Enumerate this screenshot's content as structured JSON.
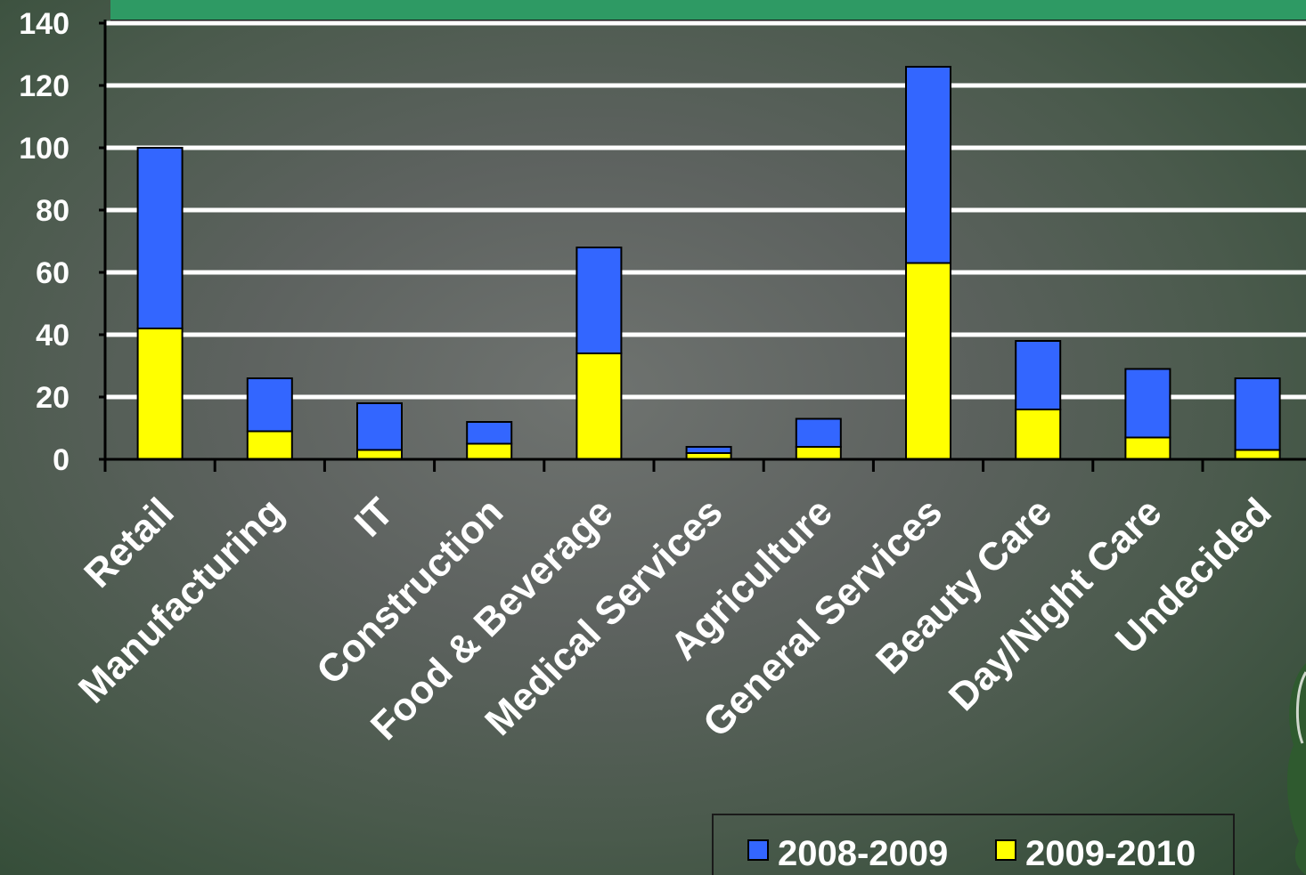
{
  "chart_data": {
    "type": "bar",
    "stacked": true,
    "categories": [
      "Retail",
      "Manufacturing",
      "IT",
      "Construction",
      "Food & Beverage",
      "Medical Services",
      "Agriculture",
      "General Services",
      "Beauty Care",
      "Day/Night Care",
      "Undecided"
    ],
    "series": [
      {
        "name": "2009-2010",
        "color": "#ffff00",
        "values": [
          42,
          9,
          3,
          5,
          34,
          2,
          4,
          63,
          16,
          7,
          3
        ]
      },
      {
        "name": "2008-2009",
        "color": "#3366ff",
        "values": [
          58,
          17,
          15,
          7,
          34,
          2,
          9,
          63,
          22,
          22,
          23
        ]
      }
    ],
    "legend_order": [
      "2008-2009",
      "2009-2010"
    ],
    "y_ticks": [
      "0",
      "20",
      "40",
      "60",
      "80",
      "100",
      "120",
      "140"
    ],
    "ylim": [
      0,
      140
    ],
    "grid": true,
    "legend_position": "bottom-right",
    "colors": {
      "grid": "#ffffff",
      "axis": "#000000",
      "text": "#ffffff",
      "banner": "#2e9a64"
    }
  }
}
